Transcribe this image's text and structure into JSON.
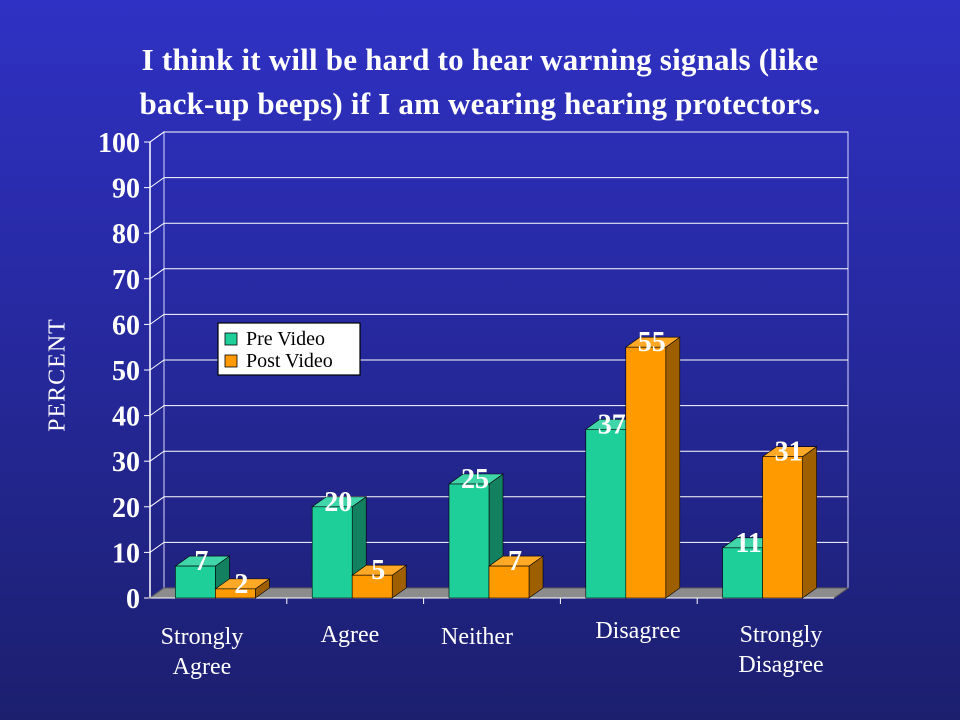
{
  "title_line1": "I think it will be hard to hear warning signals (like",
  "title_line2": "back-up beeps) if I am wearing hearing protectors.",
  "colors": {
    "background_top": "#2f31c4",
    "background_bottom": "#1c1f6e",
    "pre_video": "#1fcf9a",
    "post_video": "#ff9a00",
    "plot_floor": "#8c8c8c"
  },
  "chart_data": {
    "type": "bar",
    "title": "I think it will be hard to hear warning signals (like back-up beeps) if I am wearing hearing protectors.",
    "ylabel": "PERCENT",
    "xlabel": "",
    "ylim": [
      0,
      100
    ],
    "yticks": [
      "0",
      "10",
      "20",
      "30",
      "40",
      "50",
      "60",
      "70",
      "80",
      "90",
      "100"
    ],
    "grid": true,
    "legend_position": "upper-left",
    "categories": [
      "Strongly\nAgree",
      "Agree",
      "Neither",
      "Disagree",
      "Strongly\nDisagree"
    ],
    "series": [
      {
        "name": "Pre Video",
        "values": [
          7,
          20,
          25,
          37,
          11
        ]
      },
      {
        "name": "Post Video",
        "values": [
          2,
          5,
          7,
          55,
          31
        ]
      }
    ],
    "data_labels": true
  }
}
